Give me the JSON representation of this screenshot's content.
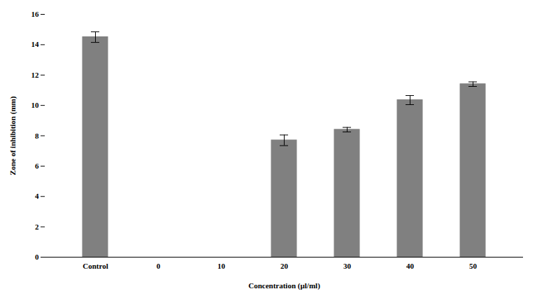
{
  "chart_data": {
    "type": "bar",
    "categories": [
      "Control",
      "0",
      "10",
      "20",
      "30",
      "40",
      "50"
    ],
    "values": [
      14.5,
      0,
      0,
      7.7,
      8.4,
      10.35,
      11.4
    ],
    "errors": [
      0.35,
      0,
      0,
      0.35,
      0.15,
      0.3,
      0.15
    ],
    "color": "#808080",
    "xlabel": "Concentration (µl/ml)",
    "ylabel": "Zone of inhibition (mm)",
    "ylim": [
      0,
      16
    ],
    "yticks": [
      0,
      2,
      4,
      6,
      8,
      10,
      12,
      14,
      16
    ],
    "grid": false
  }
}
